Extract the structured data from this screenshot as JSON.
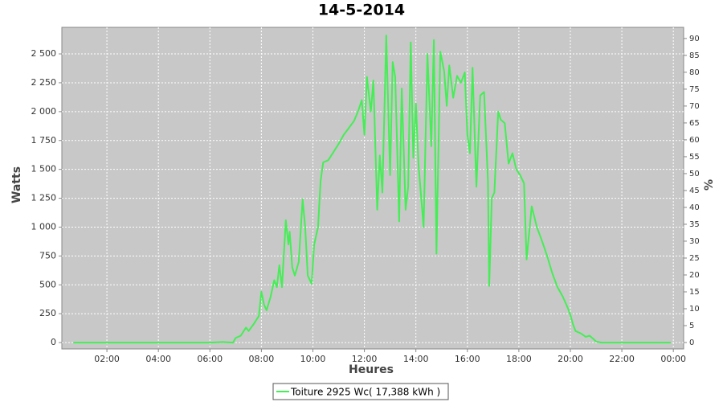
{
  "chart_data": {
    "type": "line",
    "title": "14-5-2014",
    "x_label": "Heures",
    "y_label": "Watts",
    "y2_label": "%",
    "grid": true,
    "background": "#c8c8c8",
    "legend_position": "bottom",
    "xlim": [
      0.25,
      24.4
    ],
    "xticks": [
      {
        "value": 2,
        "label": "02:00"
      },
      {
        "value": 4,
        "label": "04:00"
      },
      {
        "value": 6,
        "label": "06:00"
      },
      {
        "value": 8,
        "label": "08:00"
      },
      {
        "value": 10,
        "label": "10:00"
      },
      {
        "value": 12,
        "label": "12:00"
      },
      {
        "value": 14,
        "label": "14:00"
      },
      {
        "value": 16,
        "label": "16:00"
      },
      {
        "value": 18,
        "label": "18:00"
      },
      {
        "value": 20,
        "label": "20:00"
      },
      {
        "value": 22,
        "label": "22:00"
      },
      {
        "value": 24,
        "label": "00:00"
      }
    ],
    "ylim": [
      -55,
      2730
    ],
    "yticks": [
      0,
      250,
      500,
      750,
      {
        "value": 1000,
        "label": "1 000"
      },
      {
        "value": 1250,
        "label": "1 250"
      },
      {
        "value": 1500,
        "label": "1 500"
      },
      {
        "value": 1750,
        "label": "1 750"
      },
      {
        "value": 2000,
        "label": "2 000"
      },
      {
        "value": 2250,
        "label": "2 250"
      },
      {
        "value": 2500,
        "label": "2 500"
      }
    ],
    "y2lim": [
      -1.9,
      93.3
    ],
    "y2ticks": [
      0,
      5,
      10,
      15,
      20,
      25,
      30,
      35,
      40,
      45,
      50,
      55,
      60,
      65,
      70,
      75,
      80,
      85,
      90
    ],
    "x": [
      0.7,
      1,
      2,
      3,
      4,
      5,
      6,
      6.5,
      6.9,
      7.0,
      7.2,
      7.4,
      7.5,
      7.7,
      7.9,
      8.0,
      8.1,
      8.2,
      8.35,
      8.5,
      8.6,
      8.7,
      8.8,
      8.95,
      9.05,
      9.1,
      9.2,
      9.3,
      9.45,
      9.6,
      9.7,
      9.8,
      9.95,
      10.05,
      10.2,
      10.3,
      10.4,
      10.6,
      10.8,
      11.0,
      11.2,
      11.4,
      11.6,
      11.75,
      11.9,
      12.0,
      12.1,
      12.25,
      12.35,
      12.5,
      12.6,
      12.7,
      12.85,
      13.0,
      13.1,
      13.2,
      13.35,
      13.45,
      13.6,
      13.7,
      13.8,
      13.9,
      14.0,
      14.1,
      14.3,
      14.45,
      14.6,
      14.7,
      14.8,
      14.95,
      15.1,
      15.2,
      15.3,
      15.45,
      15.6,
      15.75,
      15.9,
      16.0,
      16.1,
      16.2,
      16.35,
      16.5,
      16.65,
      16.8,
      16.85,
      16.95,
      17.05,
      17.2,
      17.3,
      17.45,
      17.6,
      17.75,
      17.9,
      18.05,
      18.2,
      18.3,
      18.5,
      18.7,
      18.9,
      19.1,
      19.3,
      19.5,
      19.7,
      19.9,
      20.0,
      20.1,
      20.2,
      20.4,
      20.6,
      20.75,
      20.9,
      21.0,
      21.2,
      22,
      23,
      23.9
    ],
    "series": [
      {
        "name": "Toiture 2925 Wc( 17,388 kWh )",
        "color": "#44ee55",
        "values": [
          0,
          0,
          0,
          0,
          0,
          0,
          0,
          5,
          0,
          40,
          60,
          130,
          100,
          160,
          230,
          440,
          330,
          280,
          390,
          540,
          480,
          670,
          480,
          1060,
          850,
          960,
          650,
          580,
          700,
          1240,
          1000,
          580,
          510,
          850,
          1000,
          1400,
          1560,
          1580,
          1650,
          1720,
          1800,
          1860,
          1920,
          2000,
          2100,
          1800,
          2300,
          2000,
          2270,
          1150,
          1620,
          1300,
          2660,
          1450,
          2430,
          2300,
          1050,
          2200,
          1150,
          1350,
          2600,
          1600,
          2070,
          1550,
          1000,
          2500,
          1700,
          2620,
          770,
          2520,
          2350,
          2050,
          2400,
          2120,
          2310,
          2250,
          2340,
          1800,
          1640,
          2380,
          1350,
          2140,
          2170,
          1400,
          490,
          1250,
          1300,
          2000,
          1930,
          1900,
          1550,
          1640,
          1500,
          1450,
          1380,
          720,
          1180,
          1000,
          880,
          750,
          600,
          480,
          400,
          300,
          240,
          160,
          100,
          80,
          50,
          60,
          30,
          10,
          0,
          0,
          0,
          0
        ]
      }
    ]
  }
}
